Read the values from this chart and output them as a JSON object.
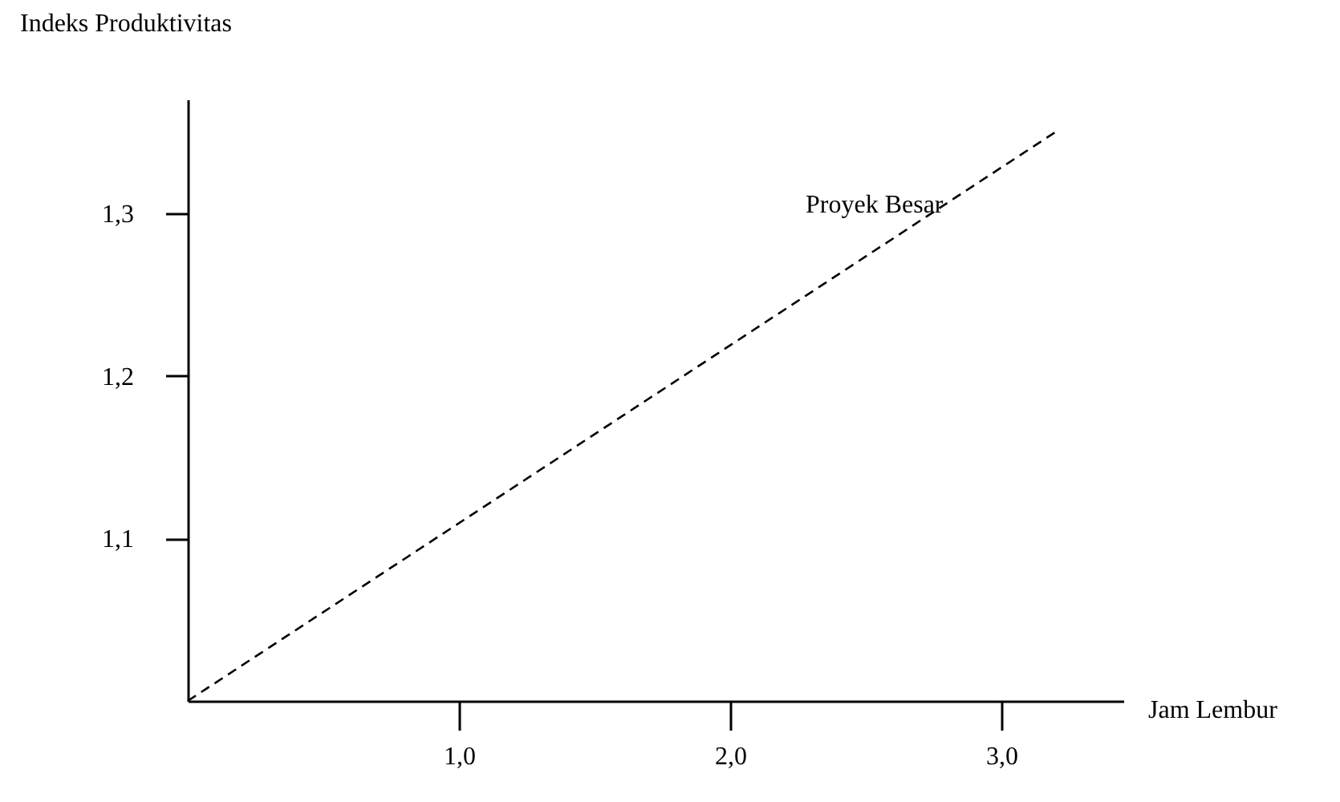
{
  "chart_data": {
    "type": "line",
    "xlabel": "Jam Lembur",
    "ylabel": "Indeks Produktivitas",
    "series": [
      {
        "name": "Proyek Besar",
        "color": "#000000",
        "x": [
          0,
          3.2
        ],
        "values": [
          1.0,
          1.35
        ]
      }
    ],
    "xlim": [
      0,
      3.45
    ],
    "ylim": [
      1.0,
      1.37
    ],
    "xticks": [
      {
        "value": 1,
        "label": "1,0"
      },
      {
        "value": 2,
        "label": "2,0"
      },
      {
        "value": 3,
        "label": "3,0"
      }
    ],
    "yticks": [
      {
        "value": 1.1,
        "label": "1,1"
      },
      {
        "value": 1.2,
        "label": "1,2"
      },
      {
        "value": 1.3,
        "label": "1,3"
      }
    ],
    "legend": false,
    "line_style": "dashed",
    "marker": "none"
  }
}
